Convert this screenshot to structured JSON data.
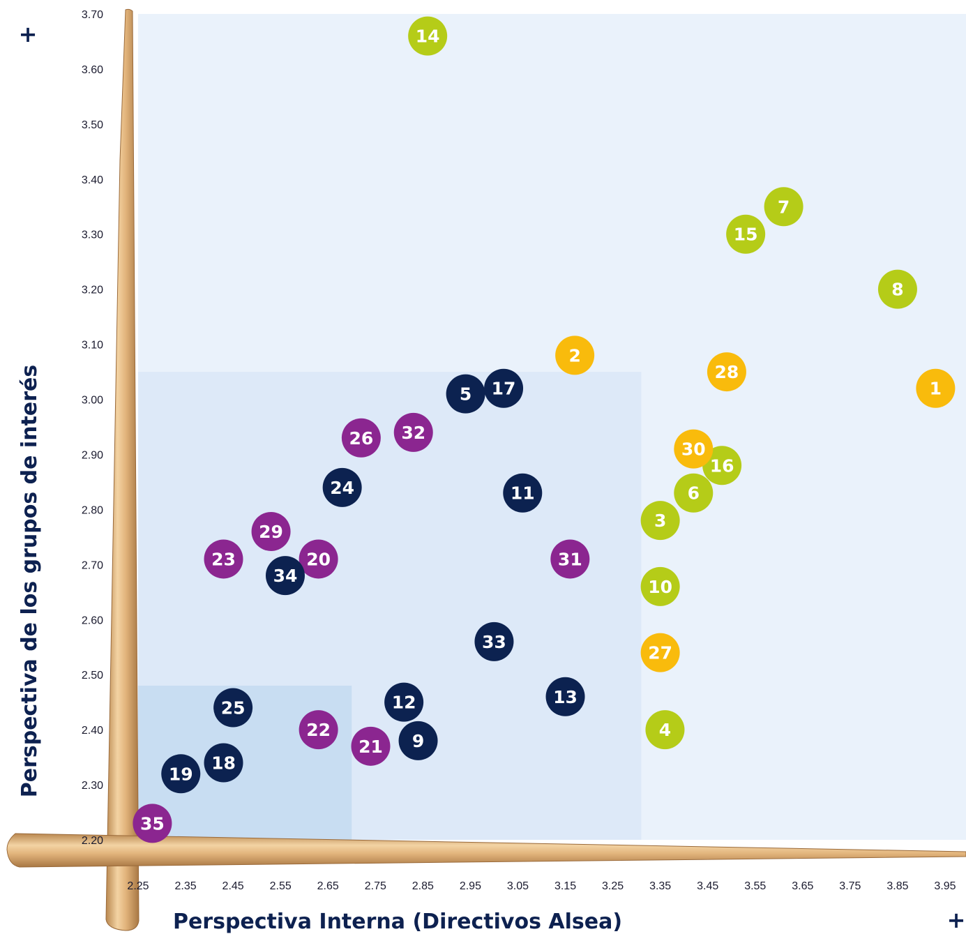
{
  "chart_data": {
    "type": "scatter",
    "xlabel": "Perspectiva Interna (Directivos Alsea)",
    "ylabel": "Perspectiva de los grupos de interés",
    "x_plus": "+",
    "y_plus": "+",
    "xlim": [
      2.25,
      3.95
    ],
    "ylim": [
      2.2,
      3.7
    ],
    "xticks": [
      "2.25",
      "2.35",
      "2.45",
      "2.55",
      "2.65",
      "2.75",
      "2.85",
      "2.95",
      "3.05",
      "3.15",
      "3.25",
      "3.35",
      "3.45",
      "3.55",
      "3.65",
      "3.75",
      "3.85",
      "3.95"
    ],
    "yticks": [
      "2.20",
      "2.30",
      "2.40",
      "2.50",
      "2.60",
      "2.70",
      "2.80",
      "2.90",
      "3.00",
      "3.10",
      "3.20",
      "3.30",
      "3.40",
      "3.50",
      "3.60",
      "3.70"
    ],
    "grid": false,
    "legend": "none",
    "zones": [
      {
        "x": [
          2.25,
          3.95
        ],
        "y": [
          2.2,
          3.7
        ],
        "color": "#eaf2fb"
      },
      {
        "x": [
          2.25,
          3.31
        ],
        "y": [
          2.2,
          3.05
        ],
        "color": "#dde9f8"
      },
      {
        "x": [
          2.25,
          2.7
        ],
        "y": [
          2.2,
          2.48
        ],
        "color": "#c8ddf2"
      }
    ],
    "colors": {
      "green": "#b5cc18",
      "yellow": "#f9bb0c",
      "navy": "#0c2250",
      "purple": "#8b2690"
    },
    "points": [
      {
        "label": "1",
        "x": 3.93,
        "y": 3.02,
        "color": "yellow"
      },
      {
        "label": "2",
        "x": 3.17,
        "y": 3.08,
        "color": "yellow"
      },
      {
        "label": "3",
        "x": 3.35,
        "y": 2.78,
        "color": "green"
      },
      {
        "label": "4",
        "x": 3.36,
        "y": 2.4,
        "color": "green"
      },
      {
        "label": "5",
        "x": 2.94,
        "y": 3.01,
        "color": "navy"
      },
      {
        "label": "6",
        "x": 3.42,
        "y": 2.83,
        "color": "green"
      },
      {
        "label": "7",
        "x": 3.61,
        "y": 3.35,
        "color": "green"
      },
      {
        "label": "8",
        "x": 3.85,
        "y": 3.2,
        "color": "green"
      },
      {
        "label": "9",
        "x": 2.84,
        "y": 2.38,
        "color": "navy"
      },
      {
        "label": "10",
        "x": 3.35,
        "y": 2.66,
        "color": "green"
      },
      {
        "label": "11",
        "x": 3.06,
        "y": 2.83,
        "color": "navy"
      },
      {
        "label": "12",
        "x": 2.81,
        "y": 2.45,
        "color": "navy"
      },
      {
        "label": "13",
        "x": 3.15,
        "y": 2.46,
        "color": "navy"
      },
      {
        "label": "14",
        "x": 2.86,
        "y": 3.66,
        "color": "green"
      },
      {
        "label": "15",
        "x": 3.53,
        "y": 3.3,
        "color": "green"
      },
      {
        "label": "16",
        "x": 3.48,
        "y": 2.88,
        "color": "green"
      },
      {
        "label": "17",
        "x": 3.02,
        "y": 3.02,
        "color": "navy"
      },
      {
        "label": "18",
        "x": 2.43,
        "y": 2.34,
        "color": "navy"
      },
      {
        "label": "19",
        "x": 2.34,
        "y": 2.32,
        "color": "navy"
      },
      {
        "label": "20",
        "x": 2.63,
        "y": 2.71,
        "color": "purple"
      },
      {
        "label": "21",
        "x": 2.74,
        "y": 2.37,
        "color": "purple"
      },
      {
        "label": "22",
        "x": 2.63,
        "y": 2.4,
        "color": "purple"
      },
      {
        "label": "23",
        "x": 2.43,
        "y": 2.71,
        "color": "purple"
      },
      {
        "label": "24",
        "x": 2.68,
        "y": 2.84,
        "color": "navy"
      },
      {
        "label": "25",
        "x": 2.45,
        "y": 2.44,
        "color": "navy"
      },
      {
        "label": "26",
        "x": 2.72,
        "y": 2.93,
        "color": "purple"
      },
      {
        "label": "27",
        "x": 3.35,
        "y": 2.54,
        "color": "yellow"
      },
      {
        "label": "28",
        "x": 3.49,
        "y": 3.05,
        "color": "yellow"
      },
      {
        "label": "29",
        "x": 2.53,
        "y": 2.76,
        "color": "purple"
      },
      {
        "label": "30",
        "x": 3.42,
        "y": 2.91,
        "color": "yellow"
      },
      {
        "label": "31",
        "x": 3.16,
        "y": 2.71,
        "color": "purple"
      },
      {
        "label": "32",
        "x": 2.83,
        "y": 2.94,
        "color": "purple"
      },
      {
        "label": "33",
        "x": 3.0,
        "y": 2.56,
        "color": "navy"
      },
      {
        "label": "34",
        "x": 2.56,
        "y": 2.68,
        "color": "navy"
      },
      {
        "label": "35",
        "x": 2.28,
        "y": 2.23,
        "color": "purple"
      }
    ]
  }
}
